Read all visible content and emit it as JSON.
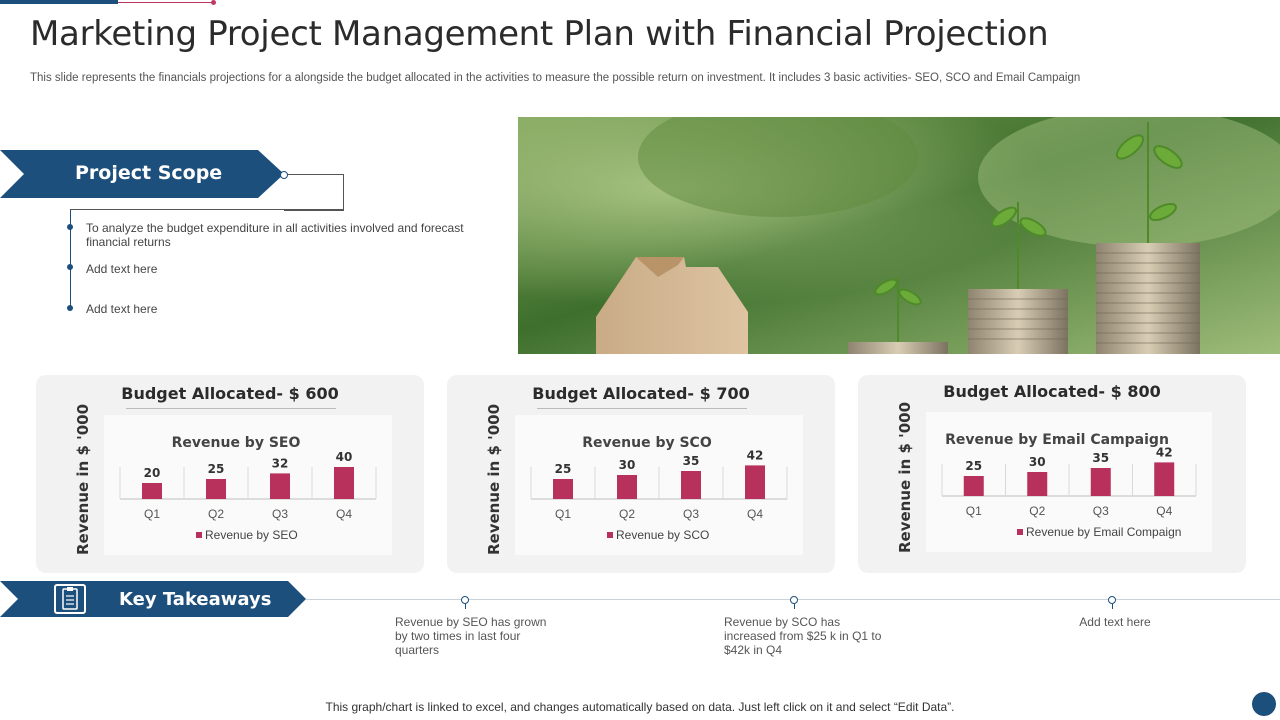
{
  "header": {
    "title": "Marketing Project Management Plan with Financial Projection",
    "subtitle": "This slide represents the financials projections for a alongside the budget allocated in the activities to measure the possible return on investment. It includes 3 basic activities- SEO, SCO and Email Campaign"
  },
  "project_scope": {
    "label": "Project Scope",
    "items": [
      "To analyze the budget expenditure in all activities involved and forecast financial returns",
      "Add text here",
      "Add text here"
    ]
  },
  "photo": {
    "icon": "house-and-coins-photo"
  },
  "cards": [
    {
      "budget": "Budget Allocated- $ 600",
      "ylabel": "Revenue in $ '000"
    },
    {
      "budget": "Budget Allocated- $ 700",
      "ylabel": "Revenue in $ '000"
    },
    {
      "budget": "Budget Allocated- $ 800",
      "ylabel": "Revenue in $ '000"
    }
  ],
  "chart_data": [
    {
      "type": "bar",
      "title": "Revenue by SEO",
      "categories": [
        "Q1",
        "Q2",
        "Q3",
        "Q4"
      ],
      "series": [
        {
          "name": "Revenue by SEO",
          "values": [
            20,
            25,
            32,
            40
          ]
        }
      ],
      "ylabel": "Revenue in $ '000",
      "legend": "bottom",
      "bar_color": "#b8305c"
    },
    {
      "type": "bar",
      "title": "Revenue by SCO",
      "categories": [
        "Q1",
        "Q2",
        "Q3",
        "Q4"
      ],
      "series": [
        {
          "name": "Revenue by SCO",
          "values": [
            25,
            30,
            35,
            42
          ]
        }
      ],
      "ylabel": "Revenue in $ '000",
      "legend": "bottom",
      "bar_color": "#b8305c"
    },
    {
      "type": "bar",
      "title": "Revenue by Email Campaign",
      "categories": [
        "Q1",
        "Q2",
        "Q3",
        "Q4"
      ],
      "series": [
        {
          "name": "Revenue by Email Compaign",
          "values": [
            25,
            30,
            35,
            42
          ]
        }
      ],
      "ylabel": "Revenue in $ '000",
      "legend": "bottom",
      "bar_color": "#b8305c"
    }
  ],
  "key_takeaways": {
    "label": "Key Takeaways",
    "icon": "clipboard-icon",
    "items": [
      "Revenue by SEO has grown by two times in last four quarters",
      "Revenue by SCO has increased from $25 k in Q1 to $42k in Q4",
      "Add text here"
    ]
  },
  "footer": {
    "note": "This graph/chart is linked to excel,  and changes automatically based on data. Just left click on it and select “Edit Data”."
  },
  "colors": {
    "accent": "#1d4f7c",
    "bar": "#b8305c",
    "card_bg": "#f2f2f2"
  }
}
